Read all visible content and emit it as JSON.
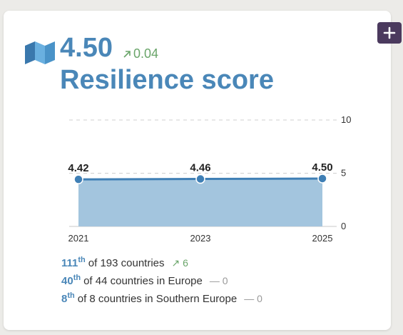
{
  "header": {
    "score": "4.50",
    "delta": "0.04",
    "delta_direction": "up",
    "title": "Resilience score"
  },
  "icons": {
    "map": "map-icon",
    "add": "plus-icon",
    "up_arrow": "arrow-up-right-icon"
  },
  "colors": {
    "accent": "#4a87b8",
    "positive": "#6aa56a",
    "neutral": "#999999",
    "area_fill": "#a3c5de",
    "button": "#4b3a5e"
  },
  "chart_data": {
    "type": "area",
    "x": [
      "2021",
      "2023",
      "2025"
    ],
    "values": [
      4.42,
      4.46,
      4.5
    ],
    "point_labels": [
      "4.42",
      "4.46",
      "4.50"
    ],
    "ylim": [
      0,
      10
    ],
    "yticks": [
      "0",
      "5",
      "10"
    ],
    "grid": "dashed at 5 and 10",
    "title": "",
    "xlabel": "",
    "ylabel": ""
  },
  "ranks": [
    {
      "num": "111",
      "suffix": "th",
      "text": "of 193 countries",
      "change_icon": "↗",
      "change": "6",
      "direction": "up"
    },
    {
      "num": "40",
      "suffix": "th",
      "text": "of 44 countries in Europe",
      "change_icon": "—",
      "change": "0",
      "direction": "flat"
    },
    {
      "num": "8",
      "suffix": "th",
      "text": "of 8 countries in Southern Europe",
      "change_icon": "—",
      "change": "0",
      "direction": "flat"
    }
  ]
}
